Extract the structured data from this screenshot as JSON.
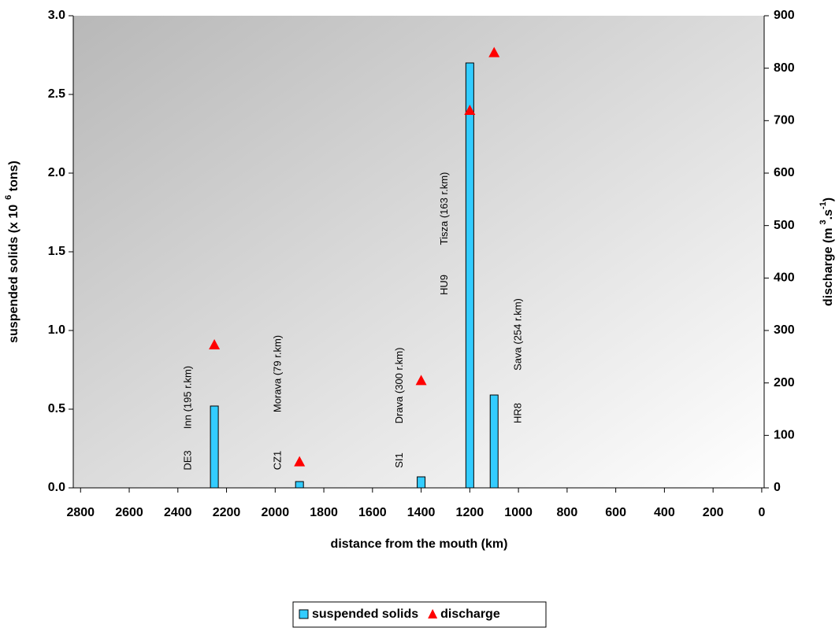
{
  "chart_data": {
    "type": "bar-scatter",
    "x": [
      2250,
      1900,
      1400,
      1200,
      1100
    ],
    "stations": [
      "DE3",
      "CZ1",
      "SI1",
      "HU9",
      "HR8"
    ],
    "rivers": [
      "Inn (195 r.km)",
      "Morava (79 r.km)",
      "Drava (300 r.km)",
      "Tisza (163 r.km)",
      "Sava (254 r.km)"
    ],
    "series": [
      {
        "name": "suspended solids",
        "type": "bar",
        "color": "#33ccff",
        "values": [
          0.52,
          0.04,
          0.07,
          2.7,
          0.59
        ]
      },
      {
        "name": "discharge",
        "type": "scatter",
        "axis": "y2",
        "color": "#ff0000",
        "values": [
          273,
          50,
          205,
          720,
          830
        ]
      }
    ],
    "xlabel": "distance from the mouth (km)",
    "ylabel": [
      "suspended solids (x 10",
      "6",
      " tons)"
    ],
    "y2label": [
      "discharge (m",
      "3",
      ".s",
      "-1",
      ")"
    ],
    "xlim": [
      2830,
      -10
    ],
    "xticks": [
      2800,
      2600,
      2400,
      2200,
      2000,
      1800,
      1600,
      1400,
      1200,
      1000,
      800,
      600,
      400,
      200,
      0
    ],
    "ylim": [
      0,
      3
    ],
    "yticks": [
      {
        "value": 0,
        "label": "0.0"
      },
      0.5,
      {
        "value": 1,
        "label": "1.0"
      },
      1.5,
      {
        "value": 2,
        "label": "2.0"
      },
      2.5,
      {
        "value": 3,
        "label": "3.0"
      }
    ],
    "y2lim": [
      0,
      900
    ],
    "y2ticks": [
      0,
      100,
      200,
      300,
      400,
      500,
      600,
      700,
      800,
      900
    ],
    "legend": "bottom"
  }
}
